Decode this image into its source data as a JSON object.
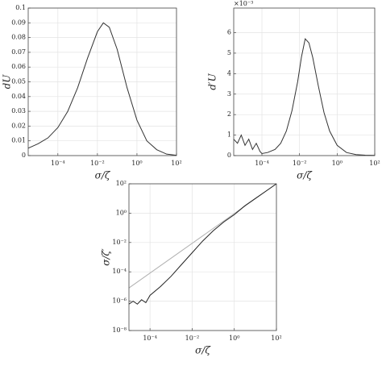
{
  "chart_data": [
    {
      "type": "line",
      "xlabel": "σ/ζ",
      "ylabel": "dU",
      "xscale": "log",
      "grid": true,
      "xlim": [
        3.16e-06,
        100
      ],
      "xticks": [
        {
          "value": 0.0001,
          "label": "10⁻⁴"
        },
        {
          "value": 0.01,
          "label": "10⁻²"
        },
        {
          "value": 1,
          "label": "10⁰"
        },
        {
          "value": 100,
          "label": "10²"
        }
      ],
      "ylim": [
        0,
        0.1
      ],
      "yticks": [
        0,
        0.01,
        0.02,
        0.03,
        0.04,
        0.05,
        0.06,
        0.07,
        0.08,
        0.09,
        0.1
      ],
      "series": [
        {
          "color": "#333333",
          "x": [
            3.16e-06,
            1e-05,
            3.16e-05,
            0.0001,
            0.000316,
            0.001,
            0.00316,
            0.01,
            0.02,
            0.04,
            0.1,
            0.316,
            1,
            3.16,
            10,
            31.6,
            100
          ],
          "values": [
            0.005,
            0.008,
            0.012,
            0.019,
            0.03,
            0.046,
            0.066,
            0.084,
            0.09,
            0.087,
            0.072,
            0.046,
            0.024,
            0.01,
            0.004,
            0.001,
            0.0002
          ]
        }
      ]
    },
    {
      "type": "line",
      "xlabel": "σ/ζ",
      "ylabel": "d′U",
      "annotation": "×10⁻³",
      "xscale": "log",
      "grid": true,
      "xlim": [
        3.16e-06,
        100
      ],
      "xticks": [
        {
          "value": 0.0001,
          "label": "10⁻⁴"
        },
        {
          "value": 0.01,
          "label": "10⁻²"
        },
        {
          "value": 1,
          "label": "10⁰"
        },
        {
          "value": 100,
          "label": "10²"
        }
      ],
      "ylim": [
        0,
        7.2
      ],
      "yticks": [
        0,
        1,
        2,
        3,
        4,
        5,
        6
      ],
      "series": [
        {
          "color": "#333333",
          "x": [
            3.16e-06,
            5.01e-06,
            7.94e-06,
            1.26e-05,
            2e-05,
            3.16e-05,
            5.01e-05,
            7.94e-05,
            0.0001,
            0.0002,
            0.000501,
            0.001,
            0.002,
            0.00398,
            0.00794,
            0.0126,
            0.02,
            0.0316,
            0.0501,
            0.1,
            0.2,
            0.398,
            1,
            3.16,
            10,
            31.6,
            100
          ],
          "values": [
            0.8,
            0.6,
            1.0,
            0.5,
            0.8,
            0.3,
            0.6,
            0.2,
            0.1,
            0.15,
            0.3,
            0.6,
            1.2,
            2.2,
            3.6,
            4.8,
            5.7,
            5.5,
            4.8,
            3.4,
            2.1,
            1.2,
            0.5,
            0.15,
            0.05,
            0.02,
            0.01
          ]
        }
      ]
    },
    {
      "type": "line",
      "xlabel": "σ/ζ",
      "ylabel": "σ/ζ′",
      "xscale": "log",
      "yscale": "log",
      "grid": true,
      "xlim": [
        1e-05,
        100
      ],
      "xticks": [
        {
          "value": 0.0001,
          "label": "10⁻⁴"
        },
        {
          "value": 0.01,
          "label": "10⁻²"
        },
        {
          "value": 1,
          "label": "10⁰"
        },
        {
          "value": 100,
          "label": "10²"
        }
      ],
      "ylim": [
        1e-08,
        100
      ],
      "yticks": [
        {
          "value": 1e-08,
          "label": "10⁻⁸"
        },
        {
          "value": 1e-06,
          "label": "10⁻⁶"
        },
        {
          "value": 0.0001,
          "label": "10⁻⁴"
        },
        {
          "value": 0.01,
          "label": "10⁻²"
        },
        {
          "value": 1,
          "label": "10⁰"
        },
        {
          "value": 100,
          "label": "10²"
        }
      ],
      "series": [
        {
          "color": "#b0b0b0",
          "x": [
            1e-05,
            100
          ],
          "values": [
            8e-06,
            100
          ]
        },
        {
          "color": "#222222",
          "x": [
            1e-05,
            1.58e-05,
            2.51e-05,
            3.98e-05,
            6.31e-05,
            0.0001,
            0.000316,
            0.001,
            0.00316,
            0.01,
            0.0316,
            0.1,
            0.316,
            1,
            3.16,
            10,
            31.6,
            100
          ],
          "values": [
            6.3e-07,
            1e-06,
            6.3e-07,
            1.26e-06,
            7.9e-07,
            2.5e-06,
            1e-05,
            5e-05,
            0.00032,
            0.002,
            0.0126,
            0.063,
            0.25,
            0.79,
            3.16,
            10,
            31.6,
            100
          ]
        }
      ]
    }
  ]
}
